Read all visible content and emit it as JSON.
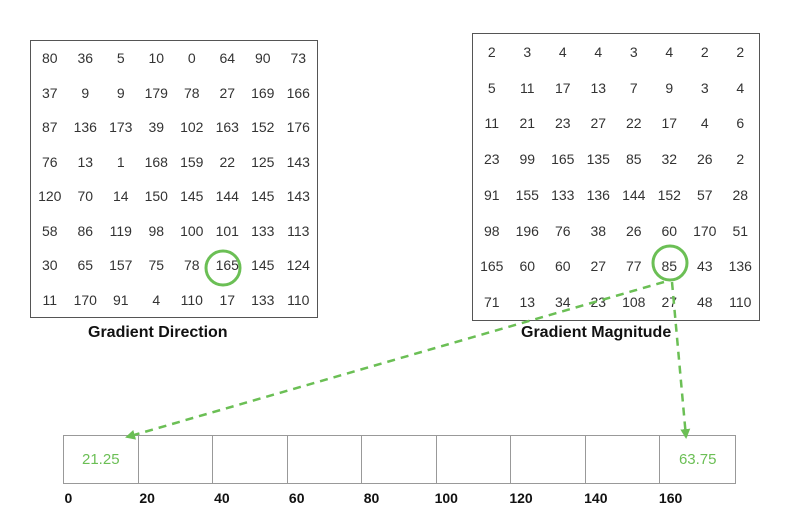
{
  "gradient_direction": {
    "caption": "Gradient Direction",
    "rows": [
      [
        "80",
        "36",
        "5",
        "10",
        "0",
        "64",
        "90",
        "73"
      ],
      [
        "37",
        "9",
        "9",
        "179",
        "78",
        "27",
        "169",
        "166"
      ],
      [
        "87",
        "136",
        "173",
        "39",
        "102",
        "163",
        "152",
        "176"
      ],
      [
        "76",
        "13",
        "1",
        "168",
        "159",
        "22",
        "125",
        "143"
      ],
      [
        "120",
        "70",
        "14",
        "150",
        "145",
        "144",
        "145",
        "143"
      ],
      [
        "58",
        "86",
        "119",
        "98",
        "100",
        "101",
        "133",
        "113"
      ],
      [
        "30",
        "65",
        "157",
        "75",
        "78",
        "165",
        "145",
        "124"
      ],
      [
        "11",
        "170",
        "91",
        "4",
        "110",
        "17",
        "133",
        "110"
      ]
    ],
    "highlighted_cell": {
      "row": 6,
      "col": 5
    }
  },
  "gradient_magnitude": {
    "caption": "Gradient Magnitude",
    "rows": [
      [
        "2",
        "3",
        "4",
        "4",
        "3",
        "4",
        "2",
        "2"
      ],
      [
        "5",
        "11",
        "17",
        "13",
        "7",
        "9",
        "3",
        "4"
      ],
      [
        "11",
        "21",
        "23",
        "27",
        "22",
        "17",
        "4",
        "6"
      ],
      [
        "23",
        "99",
        "165",
        "135",
        "85",
        "32",
        "26",
        "2"
      ],
      [
        "91",
        "155",
        "133",
        "136",
        "144",
        "152",
        "57",
        "28"
      ],
      [
        "98",
        "196",
        "76",
        "38",
        "26",
        "60",
        "170",
        "51"
      ],
      [
        "165",
        "60",
        "60",
        "27",
        "77",
        "85",
        "43",
        "136"
      ],
      [
        "71",
        "13",
        "34",
        "23",
        "108",
        "27",
        "48",
        "110"
      ]
    ],
    "highlighted_cell": {
      "row": 6,
      "col": 5
    }
  },
  "histogram": {
    "bin_labels": [
      "0",
      "20",
      "40",
      "60",
      "80",
      "100",
      "120",
      "140",
      "160"
    ],
    "bin_values": [
      "21.25",
      "",
      "",
      "",
      "",
      "",
      "",
      "",
      "63.75"
    ]
  },
  "colors": {
    "accent": "#6bbf55",
    "grid_border": "#555555",
    "text": "#333333"
  }
}
